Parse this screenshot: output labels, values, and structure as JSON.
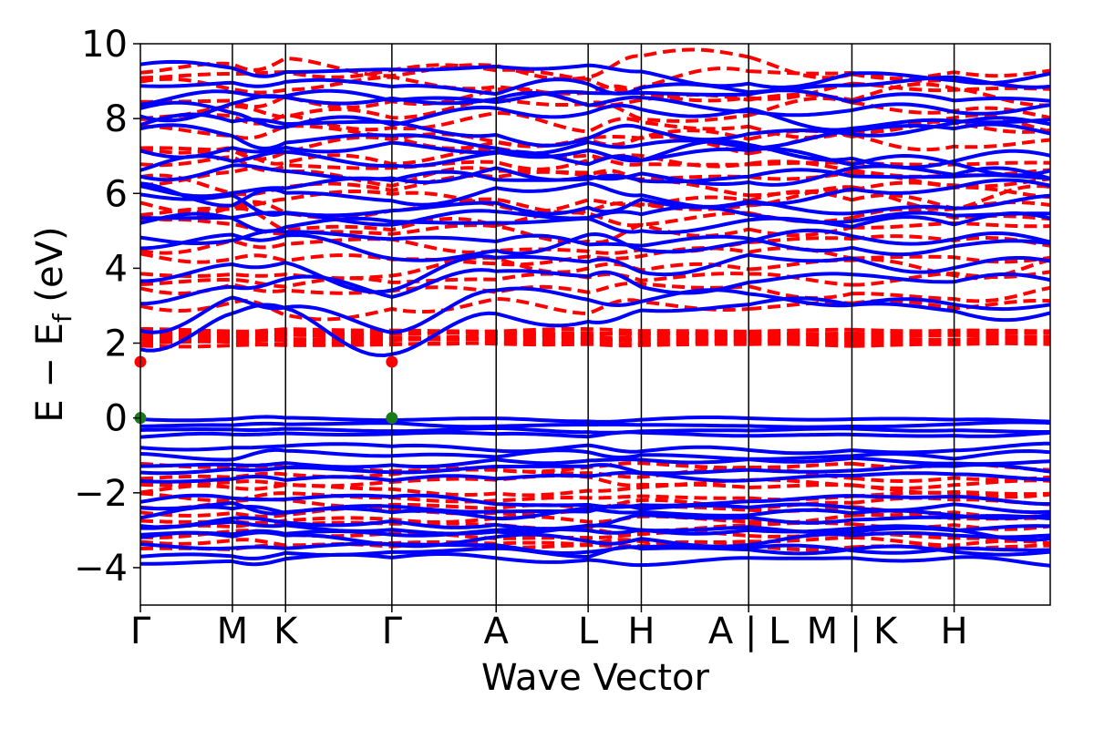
{
  "chart_data": {
    "type": "line",
    "title": "",
    "xlabel": "Wave Vector",
    "ylabel": {
      "text": "E − E",
      "subscript": "f",
      "suffix": " (eV)"
    },
    "ylim": [
      -5,
      10
    ],
    "yticks": [
      -4,
      -2,
      0,
      2,
      4,
      6,
      8,
      10
    ],
    "xlim": [
      0,
      8.9
    ],
    "kpoints": [
      {
        "label": "Γ",
        "x": 0.0
      },
      {
        "label": "M",
        "x": 0.9
      },
      {
        "label": "K",
        "x": 1.42
      },
      {
        "label": "Γ",
        "x": 2.46
      },
      {
        "label": "A",
        "x": 3.48
      },
      {
        "label": "L",
        "x": 4.38
      },
      {
        "label": "H",
        "x": 4.9
      },
      {
        "label": "A | L",
        "x": 5.95
      },
      {
        "label": "M | K",
        "x": 6.96
      },
      {
        "label": "H",
        "x": 7.96
      }
    ],
    "segment_breaks": [
      5.95,
      6.96
    ],
    "grid": false,
    "legend": "none",
    "series": [
      {
        "style": "solid",
        "color": "#0000ff"
      },
      {
        "style": "dashed",
        "color": "#ff0000"
      }
    ],
    "band_edges": [
      {
        "kind": "cbm",
        "x": 0.0,
        "y": 1.5,
        "color": "#ff0000"
      },
      {
        "kind": "cbm",
        "x": 2.46,
        "y": 1.5,
        "color": "#ff0000"
      },
      {
        "kind": "vbm",
        "x": 0.0,
        "y": 0.0,
        "color": "#1a7a1a"
      },
      {
        "kind": "vbm",
        "x": 2.46,
        "y": 0.0,
        "color": "#1a7a1a"
      }
    ]
  }
}
